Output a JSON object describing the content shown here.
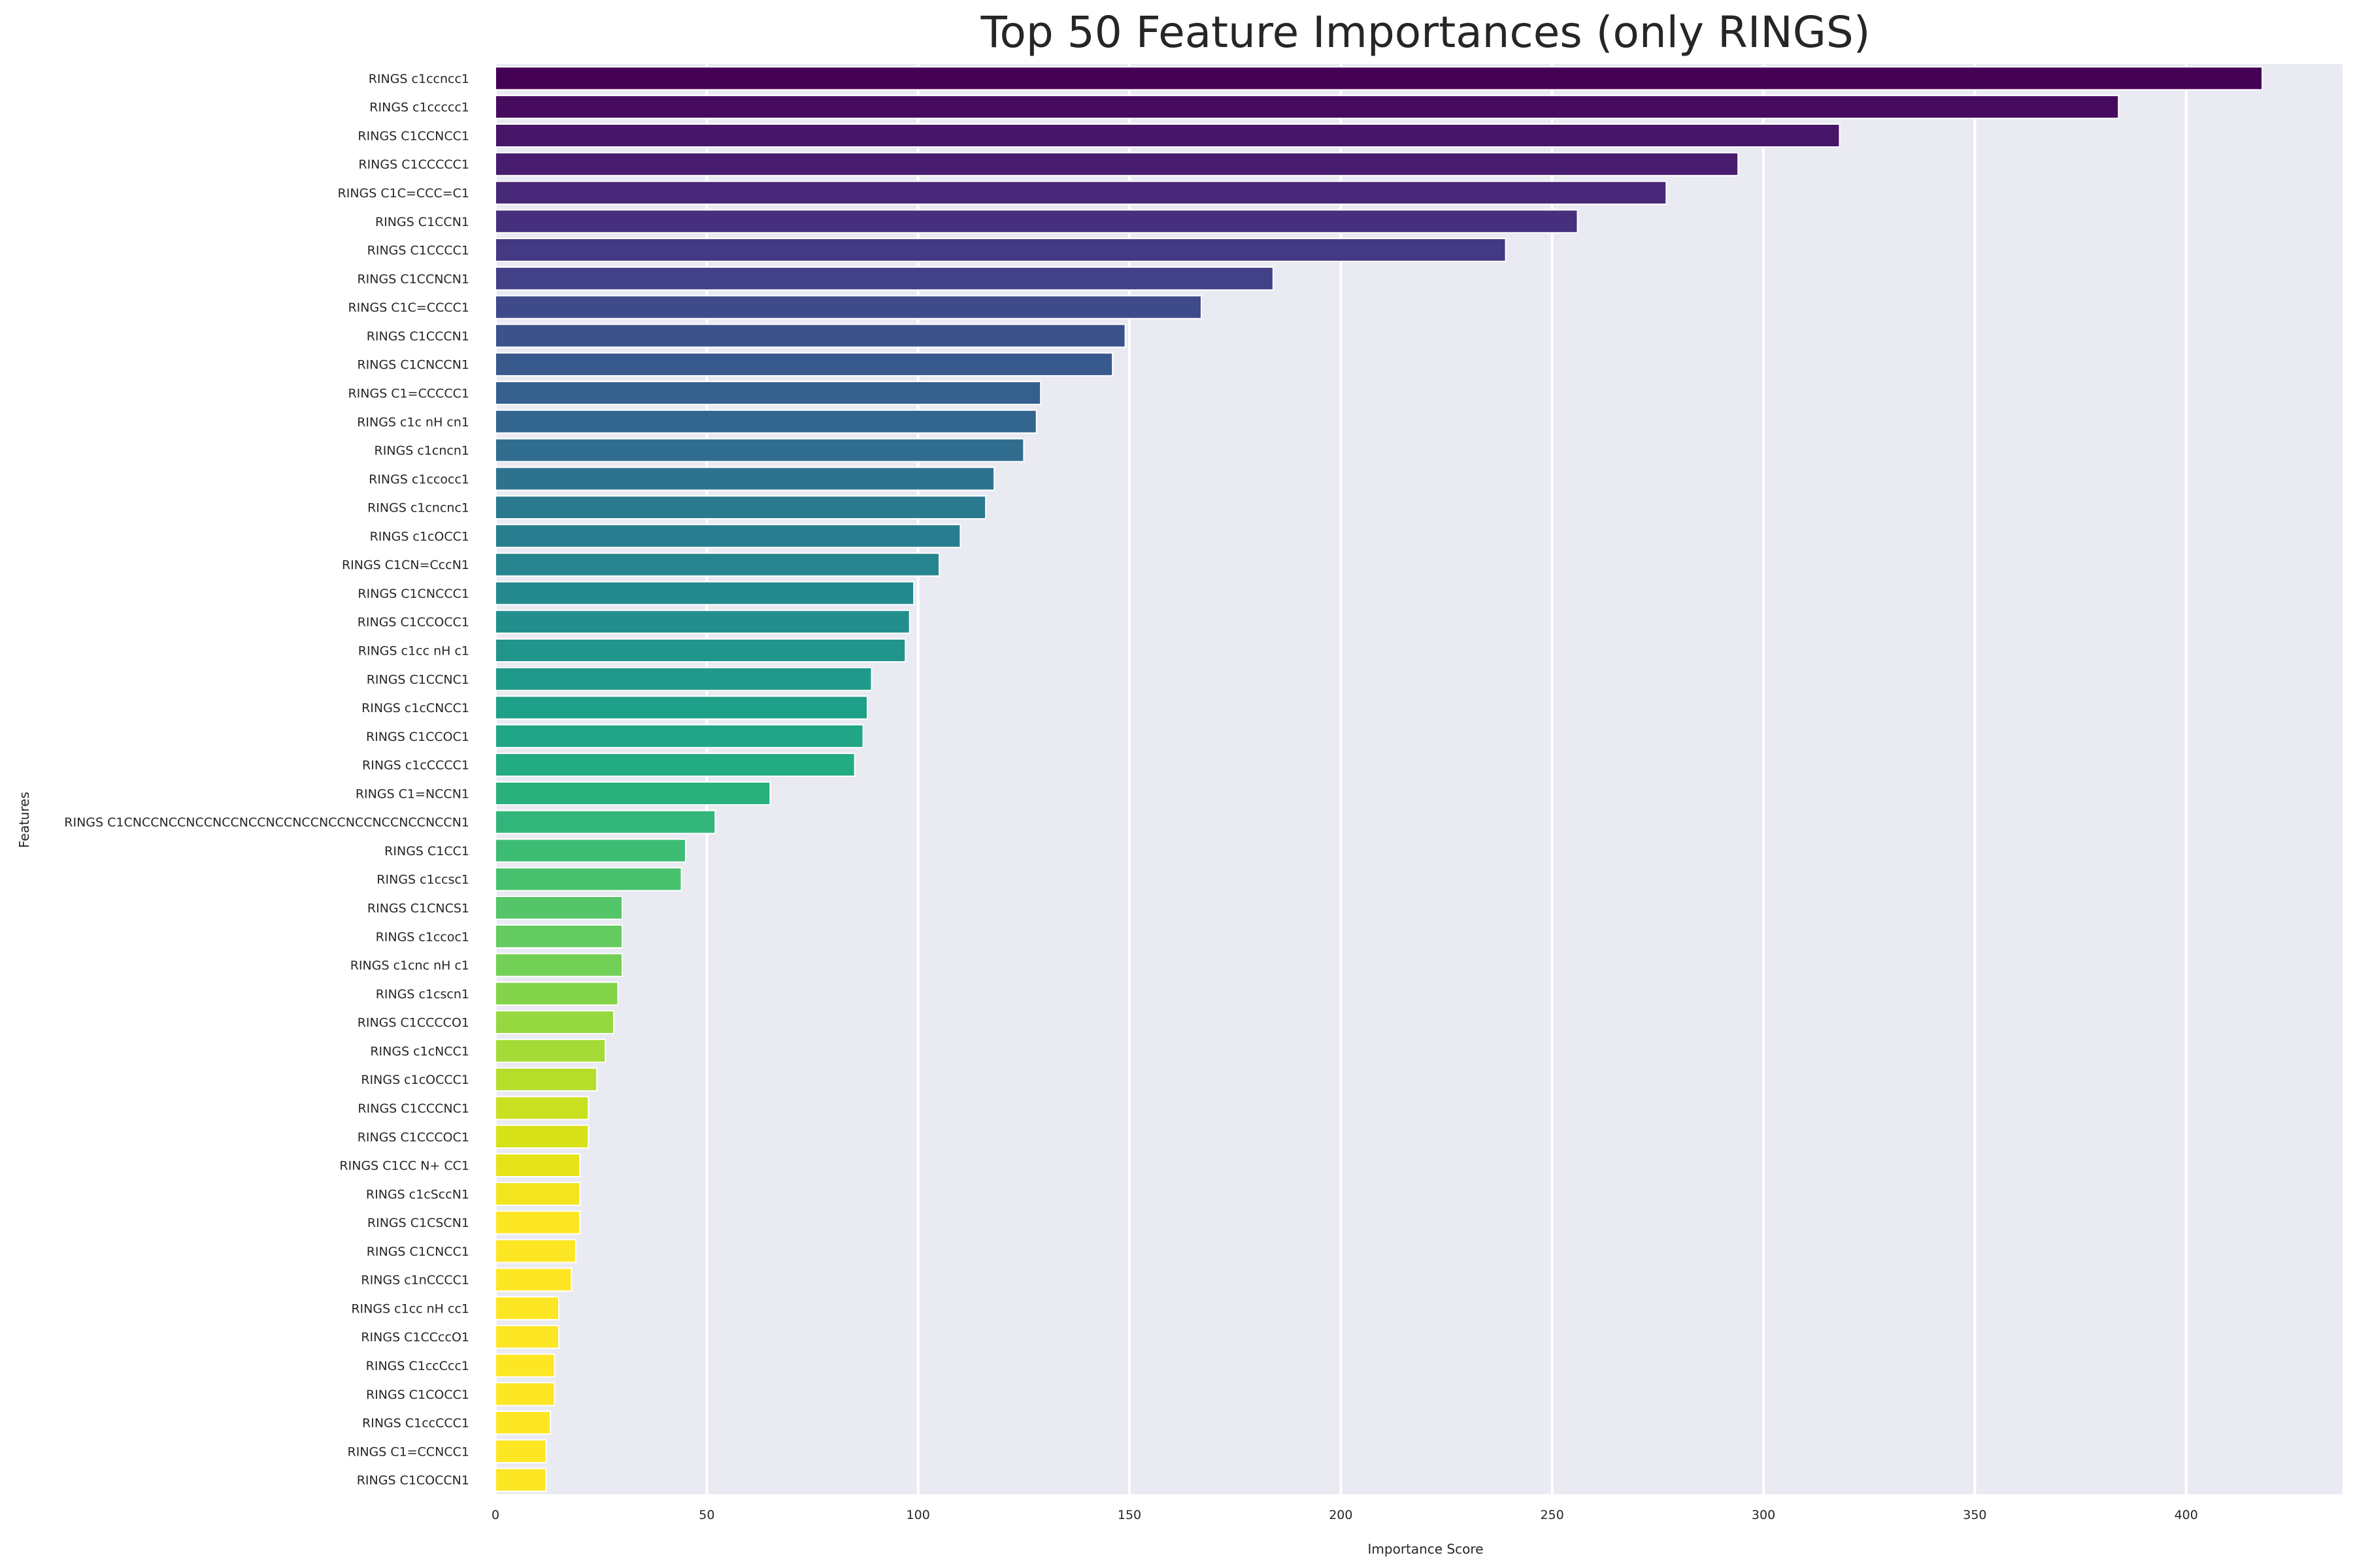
{
  "chart_data": {
    "type": "bar",
    "orientation": "horizontal",
    "title": "Top 50 Feature Importances (only RINGS)",
    "xlabel": "Importance Score",
    "ylabel": "Features",
    "xlim": [
      0,
      437
    ],
    "xticks": [
      0,
      50,
      100,
      150,
      200,
      250,
      300,
      350,
      400
    ],
    "grid": true,
    "palette": "viridis",
    "background": "#eaeaf2",
    "grid_color": "#ffffff",
    "categories": [
      "RINGS c1ccncc1",
      "RINGS c1ccccc1",
      "RINGS C1CCNCC1",
      "RINGS C1CCCCC1",
      "RINGS C1C=CCC=C1",
      "RINGS C1CCN1",
      "RINGS C1CCCC1",
      "RINGS C1CCNCN1",
      "RINGS C1C=CCCC1",
      "RINGS C1CCCN1",
      "RINGS C1CNCCN1",
      "RINGS C1=CCCCC1",
      "RINGS c1c nH cn1",
      "RINGS c1cncn1",
      "RINGS c1ccocc1",
      "RINGS c1cncnc1",
      "RINGS c1cOCC1",
      "RINGS C1CN=CccN1",
      "RINGS C1CNCCC1",
      "RINGS C1CCOCC1",
      "RINGS c1cc nH c1",
      "RINGS C1CCNC1",
      "RINGS c1cCNCC1",
      "RINGS C1CCOC1",
      "RINGS c1cCCCC1",
      "RINGS C1=NCCN1",
      "RINGS C1CNCCNCCNCCNCCNCCNCCNCCNCCNCCNCCNCCNCCN1",
      "RINGS C1CC1",
      "RINGS c1ccsc1",
      "RINGS C1CNCS1",
      "RINGS c1ccoc1",
      "RINGS c1cnc nH c1",
      "RINGS c1cscn1",
      "RINGS C1CCCCO1",
      "RINGS c1cNCC1",
      "RINGS c1cOCCC1",
      "RINGS C1CCCNC1",
      "RINGS C1CCCOC1",
      "RINGS C1CC N+ CC1",
      "RINGS c1cSccN1",
      "RINGS C1CSCN1",
      "RINGS C1CNCC1",
      "RINGS c1nCCCC1",
      "RINGS c1cc nH cc1",
      "RINGS C1CCccO1",
      "RINGS C1ccCcc1",
      "RINGS C1COCC1",
      "RINGS C1ccCCC1",
      "RINGS C1=CCNCC1",
      "RINGS C1COCCN1"
    ],
    "values": [
      418,
      384,
      318,
      294,
      277,
      256,
      239,
      184,
      167,
      149,
      146,
      129,
      128,
      125,
      118,
      116,
      110,
      105,
      99,
      98,
      97,
      89,
      88,
      87,
      85,
      65,
      52,
      45,
      44,
      30,
      30,
      30,
      29,
      28,
      26,
      24,
      22,
      22,
      20,
      20,
      20,
      19,
      18,
      15,
      15,
      14,
      14,
      13,
      12,
      12
    ],
    "colors": [
      "#440154",
      "#460b5e",
      "#471567",
      "#481d6f",
      "#472777",
      "#46307e",
      "#443983",
      "#424086",
      "#3e4a89",
      "#3b528b",
      "#38598c",
      "#35608d",
      "#32668e",
      "#306d8e",
      "#2d738e",
      "#2b798e",
      "#287e8e",
      "#26848e",
      "#24898e",
      "#228f8d",
      "#21948c",
      "#1f9a8a",
      "#1fa088",
      "#20a586",
      "#23ab82",
      "#29b07d",
      "#31b57a",
      "#3dbc74",
      "#48c16e",
      "#54c568",
      "#63cb5f",
      "#73d056",
      "#84d44b",
      "#95d840",
      "#a5db36",
      "#b5de2b",
      "#c8e020",
      "#d8e219",
      "#e6e419",
      "#f2e51d",
      "#fde725",
      "#fde725",
      "#fde725",
      "#fde725",
      "#fde725",
      "#fde725",
      "#fde725",
      "#fde725",
      "#fde725",
      "#fde725"
    ]
  }
}
